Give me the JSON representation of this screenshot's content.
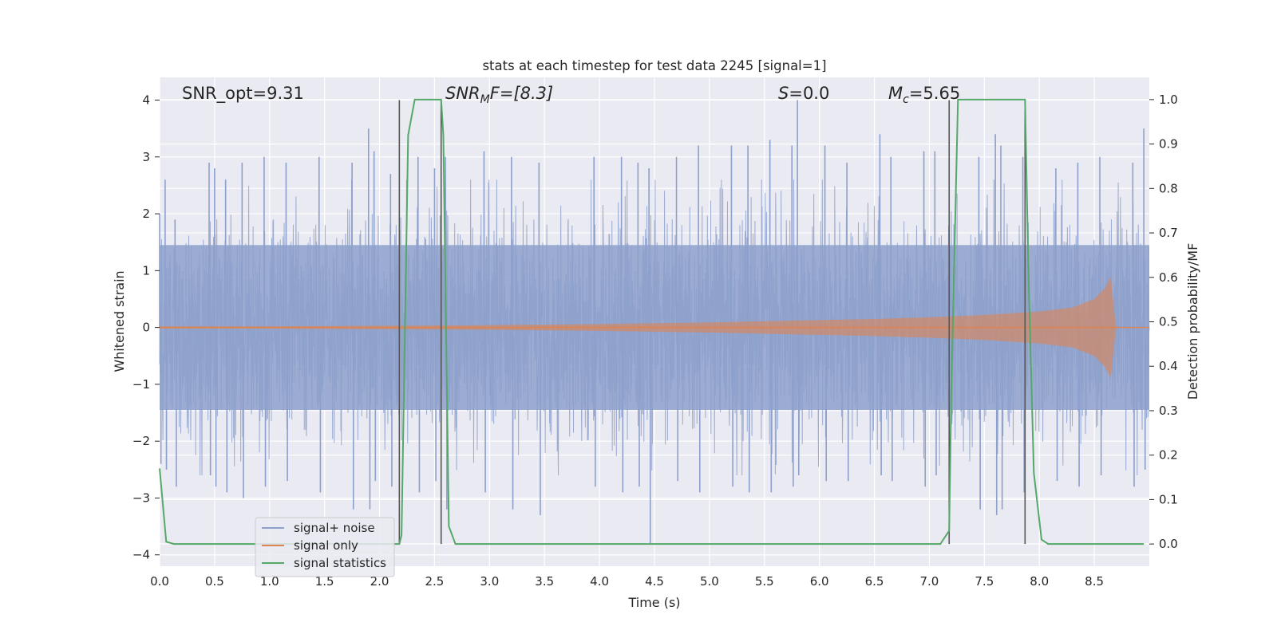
{
  "chart_data": {
    "type": "line",
    "title": "stats at each timestep for test data 2245 [signal=1]",
    "xlabel": "Time (s)",
    "ylabel_left": "Whitened strain",
    "ylabel_right": "Detection probability/MF",
    "xlim": [
      0.0,
      9.0
    ],
    "ylim_left": [
      -4.2,
      4.4
    ],
    "ylim_right": [
      -0.05,
      1.05
    ],
    "xticks": [
      "0.0",
      "0.5",
      "1.0",
      "1.5",
      "2.0",
      "2.5",
      "3.0",
      "3.5",
      "4.0",
      "4.5",
      "5.0",
      "5.5",
      "6.0",
      "6.5",
      "7.0",
      "7.5",
      "8.0",
      "8.5"
    ],
    "yticks_left": [
      "4",
      "3",
      "2",
      "1",
      "0",
      "−1",
      "−2",
      "−3",
      "−4"
    ],
    "yticks_right": [
      "1.0",
      "0.9",
      "0.8",
      "0.7",
      "0.6",
      "0.5",
      "0.4",
      "0.3",
      "0.2",
      "0.1",
      "0.0"
    ],
    "grid": true,
    "legend_position": "bottom-left",
    "annotations": {
      "snr_opt": "SNR_opt=9.31",
      "snr_mf_main": "SNR",
      "snr_mf_sub": "M",
      "snr_mf_rest": "F=[8.3]",
      "s_var": "S",
      "s_rest": "=0.0",
      "mc_var": "M",
      "mc_sub": "c",
      "mc_rest": "=5.65"
    },
    "vertical_lines_x": [
      2.18,
      2.56,
      7.18,
      7.87
    ],
    "colors": {
      "background": "#eaeaf2",
      "grid": "#ffffff",
      "noise": "#8da0cb",
      "signal": "#dd8452",
      "stats": "#55a868",
      "vline": "#555555"
    },
    "series": [
      {
        "name": "signal+ noise",
        "axis": "left",
        "description_points": "noisy whitened strain spanning roughly -3.8 to 3.9, centered near 0",
        "spike_x": [
          0.0,
          0.05,
          0.14,
          0.45,
          0.5,
          0.6,
          0.75,
          0.95,
          1.15,
          1.45,
          1.75,
          1.9,
          1.95,
          2.1,
          2.35,
          2.5,
          2.6,
          2.95,
          3.2,
          3.45,
          3.95,
          4.2,
          4.35,
          4.45,
          4.7,
          4.9,
          5.2,
          5.35,
          5.55,
          5.75,
          5.8,
          6.05,
          6.25,
          6.55,
          6.65,
          6.95,
          7.05,
          7.45,
          7.6,
          7.65,
          7.85,
          8.15,
          8.35,
          8.55,
          8.85,
          8.95
        ],
        "spike_hi": [
          2.0,
          2.6,
          1.9,
          2.9,
          2.8,
          2.6,
          2.9,
          3.0,
          2.9,
          3.0,
          2.9,
          3.5,
          3.1,
          2.7,
          3.0,
          2.8,
          3.0,
          3.1,
          3.0,
          2.9,
          3.0,
          3.0,
          2.9,
          2.8,
          3.0,
          3.2,
          3.2,
          3.2,
          3.3,
          3.2,
          4.0,
          3.2,
          2.9,
          3.4,
          3.0,
          3.1,
          3.1,
          3.0,
          3.4,
          3.2,
          3.0,
          2.8,
          2.9,
          3.0,
          2.9,
          3.5
        ],
        "spike_lo": [
          -2.4,
          -2.5,
          -2.8,
          -2.6,
          -2.8,
          -2.9,
          -3.0,
          -2.8,
          -2.7,
          -2.9,
          -3.2,
          -3.2,
          -2.7,
          -2.8,
          -2.9,
          -2.7,
          -3.2,
          -2.9,
          -3.2,
          -3.3,
          -2.8,
          -2.9,
          -2.8,
          -3.8,
          -2.7,
          -2.9,
          -2.8,
          -2.9,
          -2.9,
          -2.8,
          -2.6,
          -2.7,
          -2.7,
          -2.6,
          -2.7,
          -2.8,
          -2.6,
          -3.2,
          -3.3,
          -3.2,
          -2.9,
          -2.7,
          -2.8,
          -2.6,
          -2.8,
          -2.5
        ]
      },
      {
        "name": "signal only",
        "axis": "left",
        "envelope_x": [
          0.0,
          1.0,
          2.0,
          3.0,
          4.0,
          5.0,
          6.0,
          6.5,
          7.0,
          7.5,
          8.0,
          8.3,
          8.5,
          8.6,
          8.65,
          8.68,
          8.7,
          9.0
        ],
        "envelope_amp": [
          0.02,
          0.02,
          0.03,
          0.04,
          0.06,
          0.09,
          0.13,
          0.15,
          0.18,
          0.22,
          0.28,
          0.35,
          0.5,
          0.7,
          0.9,
          0.3,
          0.0,
          0.0
        ]
      },
      {
        "name": "signal statistics",
        "axis": "right",
        "x": [
          0.0,
          0.06,
          0.13,
          2.18,
          2.2,
          2.26,
          2.32,
          2.38,
          2.5,
          2.56,
          2.58,
          2.63,
          2.69,
          2.75,
          7.1,
          7.18,
          7.2,
          7.26,
          7.32,
          7.87,
          7.9,
          7.95,
          8.02,
          8.08,
          8.15,
          8.95
        ],
        "y": [
          0.17,
          0.005,
          0.0,
          0.0,
          0.02,
          0.92,
          1.0,
          1.0,
          1.0,
          1.0,
          0.92,
          0.04,
          0.0,
          0.0,
          0.0,
          0.03,
          0.35,
          1.0,
          1.0,
          1.0,
          0.62,
          0.16,
          0.01,
          0.0,
          0.0,
          0.0
        ]
      }
    ]
  }
}
